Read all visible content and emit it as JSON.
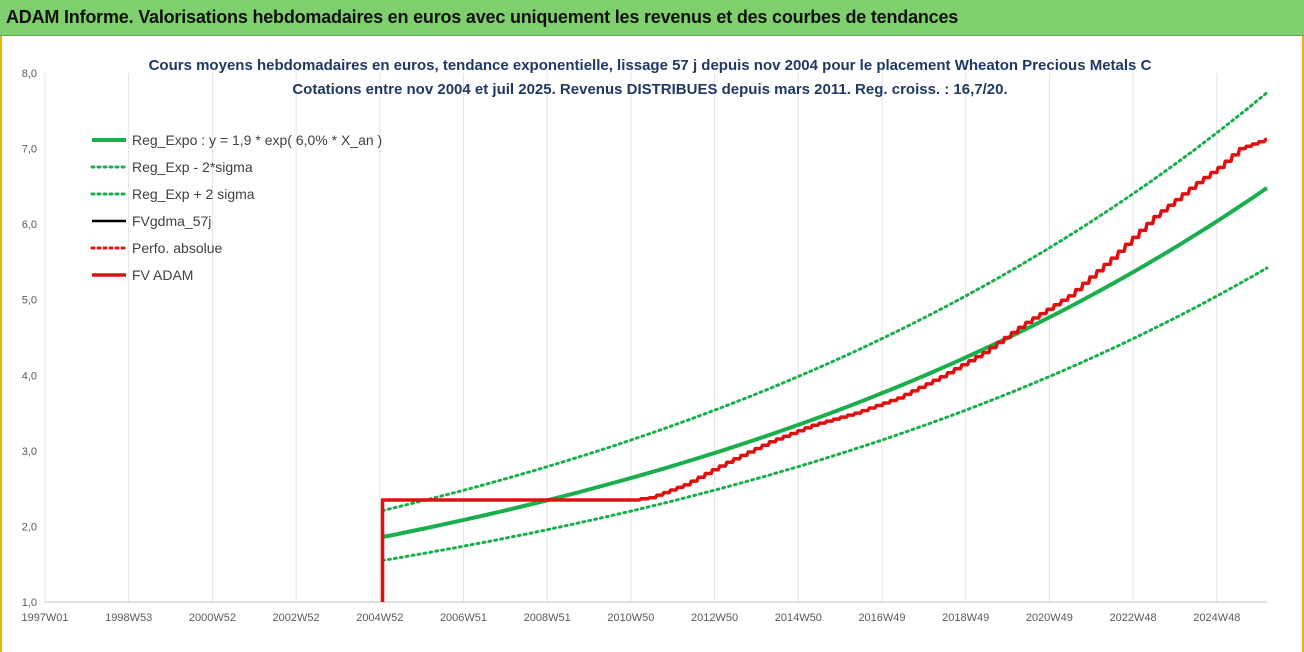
{
  "header": {
    "title": "ADAM Informe. Valorisations hebdomadaires en euros avec uniquement les revenus et des courbes de tendances"
  },
  "chart_data": {
    "type": "line",
    "title": "Cours moyens hebdomadaires en euros, tendance exponentielle, lissage 57 j depuis nov 2004 pour le placement Wheaton Precious Metals C",
    "subtitle": "Cotations entre nov 2004 et juil 2025. Revenus DISTRIBUES depuis mars 2011. Reg. croiss. : 16,7/20.",
    "x_ticks": [
      "1997W01",
      "1998W53",
      "2000W52",
      "2002W52",
      "2004W52",
      "2006W51",
      "2008W51",
      "2010W50",
      "2012W50",
      "2014W50",
      "2016W49",
      "2018W49",
      "2020W49",
      "2022W48",
      "2024W48"
    ],
    "y_ticks": [
      "1,0",
      "2,0",
      "3,0",
      "4,0",
      "5,0",
      "6,0",
      "7,0",
      "8,0"
    ],
    "xlim": [
      1997.0,
      2025.6
    ],
    "ylim": [
      1.0,
      8.0
    ],
    "grid": "vertical",
    "legend_position": "top-left",
    "series": [
      {
        "name": "Reg_Expo : y = 1,9 * exp( 6,0% *  X_an )",
        "color": "#1aaf4c",
        "style": "solid",
        "points": [
          [
            2004.9,
            1.86
          ],
          [
            2025.6,
            6.48
          ]
        ]
      },
      {
        "name": "Reg_Exp - 2*sigma",
        "color": "#1aaf4c",
        "style": "dotted",
        "points": [
          [
            2004.9,
            1.55
          ],
          [
            2025.6,
            5.42
          ]
        ]
      },
      {
        "name": "Reg_Exp + 2 sigma",
        "color": "#1aaf4c",
        "style": "dotted",
        "points": [
          [
            2004.9,
            2.21
          ],
          [
            2025.6,
            7.74
          ]
        ]
      },
      {
        "name": "FVgdma_57j",
        "color": "#000000",
        "style": "solid",
        "points": [
          [
            2004.9,
            2.35
          ],
          [
            2010.8,
            2.35
          ],
          [
            2011.2,
            2.38
          ],
          [
            2012.0,
            2.55
          ],
          [
            2013.0,
            2.85
          ],
          [
            2014.0,
            3.12
          ],
          [
            2015.0,
            3.34
          ],
          [
            2016.0,
            3.5
          ],
          [
            2017.0,
            3.7
          ],
          [
            2018.0,
            3.98
          ],
          [
            2019.0,
            4.3
          ],
          [
            2020.0,
            4.7
          ],
          [
            2021.0,
            5.05
          ],
          [
            2022.0,
            5.55
          ],
          [
            2023.0,
            6.1
          ],
          [
            2024.0,
            6.55
          ],
          [
            2024.5,
            6.75
          ],
          [
            2025.0,
            7.0
          ],
          [
            2025.6,
            7.12
          ]
        ]
      },
      {
        "name": "Perfo. absolue",
        "color": "#e01010",
        "style": "dotted",
        "points": []
      },
      {
        "name": "FV ADAM",
        "color": "#e01010",
        "style": "solid",
        "points": [
          [
            2004.9,
            1.0
          ],
          [
            2004.9,
            2.35
          ],
          [
            2010.8,
            2.35
          ],
          [
            2011.2,
            2.38
          ],
          [
            2012.0,
            2.55
          ],
          [
            2013.0,
            2.85
          ],
          [
            2014.0,
            3.12
          ],
          [
            2015.0,
            3.34
          ],
          [
            2016.0,
            3.5
          ],
          [
            2017.0,
            3.7
          ],
          [
            2018.0,
            3.98
          ],
          [
            2019.0,
            4.3
          ],
          [
            2020.0,
            4.7
          ],
          [
            2021.0,
            5.05
          ],
          [
            2022.0,
            5.55
          ],
          [
            2023.0,
            6.1
          ],
          [
            2024.0,
            6.55
          ],
          [
            2024.5,
            6.75
          ],
          [
            2025.0,
            7.0
          ],
          [
            2025.6,
            7.12
          ]
        ]
      }
    ]
  }
}
